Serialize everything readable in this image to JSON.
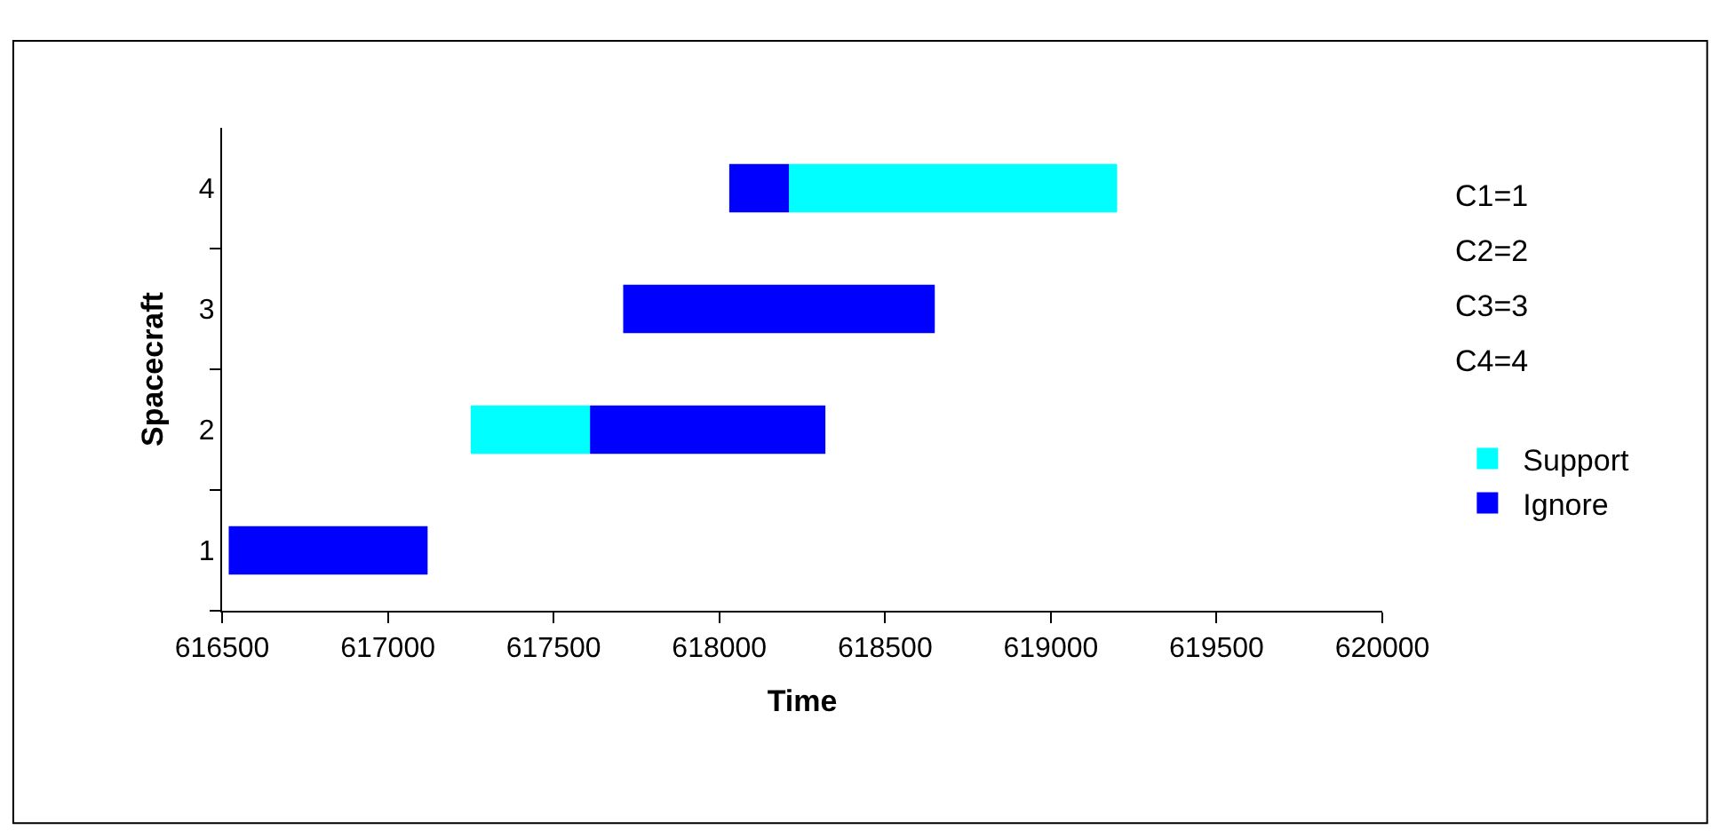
{
  "chart_data": {
    "type": "bar",
    "orientation": "horizontal",
    "xlabel": "Time",
    "ylabel": "Spacecraft",
    "categories": [
      "4",
      "3",
      "2",
      "1"
    ],
    "series": [
      {
        "name": "Support",
        "color": "#00ffff",
        "base": [
          618210,
          null,
          617250,
          null
        ],
        "values": [
          990,
          null,
          360,
          null
        ]
      },
      {
        "name": "Ignore",
        "color": "#0000ff",
        "base": [
          618030,
          617710,
          617610,
          616520
        ],
        "values": [
          180,
          940,
          710,
          600
        ]
      }
    ],
    "xlim": [
      616500,
      620000
    ],
    "xticks": [
      616500,
      617000,
      617500,
      618000,
      618500,
      619000,
      619500,
      620000
    ],
    "legend": "right",
    "annotations": [
      "C1=1",
      "C2=2",
      "C3=3",
      "C4=4"
    ]
  }
}
